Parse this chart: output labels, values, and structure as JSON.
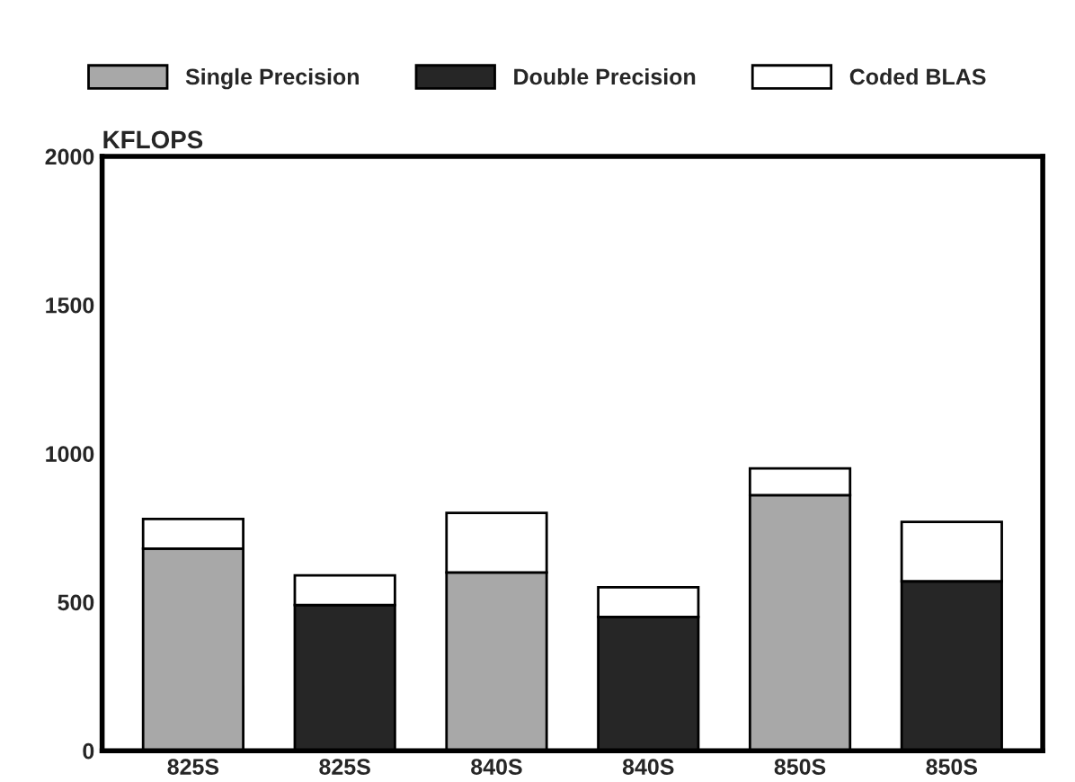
{
  "chart_data": {
    "type": "bar",
    "ylabel": "KFLOPS",
    "categories": [
      "825S",
      "825S",
      "840S",
      "840S",
      "850S",
      "850S"
    ],
    "stacked": true,
    "series": [
      {
        "name": "Single Precision",
        "color": "#a8a8a8",
        "values": [
          680,
          null,
          600,
          null,
          860,
          null
        ]
      },
      {
        "name": "Double Precision",
        "color": "#262626",
        "values": [
          null,
          490,
          null,
          450,
          null,
          570
        ]
      },
      {
        "name": "Coded BLAS",
        "color": "#ffffff",
        "values": [
          100,
          100,
          200,
          100,
          90,
          200
        ]
      }
    ],
    "ylim": [
      0,
      2000
    ],
    "yticks": [
      0,
      500,
      1000,
      1500,
      2000
    ],
    "grid": false,
    "legend": "top"
  }
}
